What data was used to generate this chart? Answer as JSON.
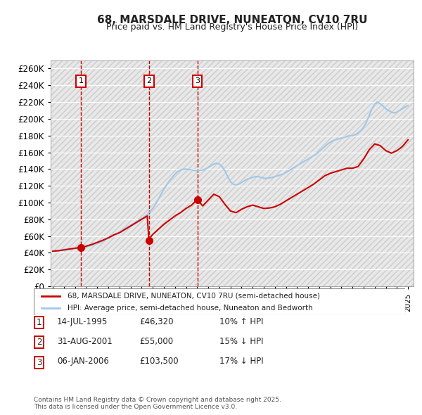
{
  "title": "68, MARSDALE DRIVE, NUNEATON, CV10 7RU",
  "subtitle": "Price paid vs. HM Land Registry's House Price Index (HPI)",
  "ylabel": "",
  "ylim": [
    0,
    270000
  ],
  "yticks": [
    0,
    20000,
    40000,
    60000,
    80000,
    100000,
    120000,
    140000,
    160000,
    180000,
    200000,
    220000,
    240000,
    260000
  ],
  "ytick_labels": [
    "£0",
    "£20K",
    "£40K",
    "£60K",
    "£80K",
    "£100K",
    "£120K",
    "£140K",
    "£160K",
    "£180K",
    "£200K",
    "£220K",
    "£240K",
    "£260K"
  ],
  "background_color": "#ffffff",
  "plot_bg_color": "#f0f0f0",
  "grid_color": "#ffffff",
  "hpi_color": "#a0c8e8",
  "price_color": "#cc0000",
  "sales": [
    {
      "date": 1995.54,
      "price": 46320,
      "label": "1"
    },
    {
      "date": 2001.66,
      "price": 55000,
      "label": "2"
    },
    {
      "date": 2006.02,
      "price": 103500,
      "label": "3"
    }
  ],
  "sale_vline_color": "#cc0000",
  "legend_label_price": "68, MARSDALE DRIVE, NUNEATON, CV10 7RU (semi-detached house)",
  "legend_label_hpi": "HPI: Average price, semi-detached house, Nuneaton and Bedworth",
  "table_data": [
    [
      "1",
      "14-JUL-1995",
      "£46,320",
      "10% ↑ HPI"
    ],
    [
      "2",
      "31-AUG-2001",
      "£55,000",
      "15% ↓ HPI"
    ],
    [
      "3",
      "06-JAN-2006",
      "£103,500",
      "17% ↓ HPI"
    ]
  ],
  "footnote": "Contains HM Land Registry data © Crown copyright and database right 2025.\nThis data is licensed under the Open Government Licence v3.0.",
  "hpi_data_x": [
    1993.0,
    1993.25,
    1993.5,
    1993.75,
    1994.0,
    1994.25,
    1994.5,
    1994.75,
    1995.0,
    1995.25,
    1995.5,
    1995.75,
    1996.0,
    1996.25,
    1996.5,
    1996.75,
    1997.0,
    1997.25,
    1997.5,
    1997.75,
    1998.0,
    1998.25,
    1998.5,
    1998.75,
    1999.0,
    1999.25,
    1999.5,
    1999.75,
    2000.0,
    2000.25,
    2000.5,
    2000.75,
    2001.0,
    2001.25,
    2001.5,
    2001.75,
    2002.0,
    2002.25,
    2002.5,
    2002.75,
    2003.0,
    2003.25,
    2003.5,
    2003.75,
    2004.0,
    2004.25,
    2004.5,
    2004.75,
    2005.0,
    2005.25,
    2005.5,
    2005.75,
    2006.0,
    2006.25,
    2006.5,
    2006.75,
    2007.0,
    2007.25,
    2007.5,
    2007.75,
    2008.0,
    2008.25,
    2008.5,
    2008.75,
    2009.0,
    2009.25,
    2009.5,
    2009.75,
    2010.0,
    2010.25,
    2010.5,
    2010.75,
    2011.0,
    2011.25,
    2011.5,
    2011.75,
    2012.0,
    2012.25,
    2012.5,
    2012.75,
    2013.0,
    2013.25,
    2013.5,
    2013.75,
    2014.0,
    2014.25,
    2014.5,
    2014.75,
    2015.0,
    2015.25,
    2015.5,
    2015.75,
    2016.0,
    2016.25,
    2016.5,
    2016.75,
    2017.0,
    2017.25,
    2017.5,
    2017.75,
    2018.0,
    2018.25,
    2018.5,
    2018.75,
    2019.0,
    2019.25,
    2019.5,
    2019.75,
    2020.0,
    2020.25,
    2020.5,
    2020.75,
    2021.0,
    2021.25,
    2021.5,
    2021.75,
    2022.0,
    2022.25,
    2022.5,
    2022.75,
    2023.0,
    2023.25,
    2023.5,
    2023.75,
    2024.0,
    2024.25,
    2024.5,
    2024.75,
    2025.0
  ],
  "hpi_data_y": [
    42000,
    42500,
    43000,
    43500,
    44000,
    44500,
    44800,
    45000,
    45200,
    45500,
    46000,
    46500,
    47000,
    48000,
    49000,
    50000,
    51000,
    52500,
    54000,
    56000,
    57500,
    59000,
    61000,
    63000,
    65000,
    67000,
    69000,
    71000,
    73000,
    75000,
    77000,
    79000,
    81000,
    83000,
    86000,
    89000,
    93000,
    98000,
    104000,
    110000,
    116000,
    121000,
    126000,
    130000,
    134000,
    137000,
    139000,
    140000,
    140000,
    139500,
    139000,
    138500,
    138000,
    138500,
    139000,
    140000,
    142000,
    144000,
    146000,
    147000,
    146000,
    143000,
    138000,
    131000,
    125000,
    122000,
    121000,
    122000,
    124000,
    126000,
    128000,
    129000,
    130000,
    131000,
    131000,
    130000,
    129000,
    129000,
    129500,
    130000,
    131000,
    132000,
    133000,
    134000,
    136000,
    138000,
    140000,
    142000,
    144000,
    146000,
    148000,
    150000,
    152000,
    154000,
    156000,
    158000,
    161000,
    164000,
    167000,
    170000,
    172000,
    174000,
    175000,
    176000,
    177000,
    178000,
    179000,
    180000,
    180000,
    181000,
    183000,
    186000,
    190000,
    196000,
    204000,
    212000,
    218000,
    220000,
    218000,
    215000,
    212000,
    210000,
    208000,
    207000,
    208000,
    210000,
    212000,
    214000,
    216000
  ],
  "price_line_x": [
    1993.0,
    1993.5,
    1994.0,
    1994.5,
    1995.0,
    1995.25,
    1995.5,
    1995.75,
    1996.0,
    1996.5,
    1997.0,
    1997.5,
    1998.0,
    1998.5,
    1999.0,
    1999.5,
    2000.0,
    2000.5,
    2001.0,
    2001.5,
    2001.66,
    2001.75,
    2002.0,
    2002.5,
    2003.0,
    2003.5,
    2004.0,
    2004.5,
    2005.0,
    2005.5,
    2006.0,
    2006.02,
    2006.25,
    2006.5,
    2007.0,
    2007.5,
    2008.0,
    2008.5,
    2009.0,
    2009.5,
    2010.0,
    2010.5,
    2011.0,
    2011.5,
    2012.0,
    2012.5,
    2013.0,
    2013.5,
    2014.0,
    2014.5,
    2015.0,
    2015.5,
    2016.0,
    2016.5,
    2017.0,
    2017.5,
    2018.0,
    2018.5,
    2019.0,
    2019.5,
    2020.0,
    2020.5,
    2021.0,
    2021.5,
    2022.0,
    2022.5,
    2023.0,
    2023.5,
    2024.0,
    2024.5,
    2025.0
  ],
  "price_line_y": [
    42000,
    42500,
    43500,
    44500,
    45500,
    46000,
    46320,
    47000,
    48000,
    50000,
    52500,
    55000,
    58000,
    61500,
    64000,
    68000,
    72000,
    76000,
    80000,
    84000,
    55000,
    58000,
    62000,
    68000,
    74000,
    79000,
    84000,
    88000,
    93000,
    97000,
    103500,
    103500,
    100000,
    96000,
    103000,
    110000,
    107000,
    98000,
    90000,
    88000,
    92000,
    95000,
    97000,
    95000,
    93000,
    93500,
    95000,
    98000,
    102000,
    106000,
    110000,
    114000,
    118000,
    122000,
    127000,
    132000,
    135000,
    137000,
    139000,
    141000,
    141000,
    143000,
    152000,
    163000,
    170000,
    168000,
    162000,
    159000,
    162000,
    167000,
    175000
  ]
}
